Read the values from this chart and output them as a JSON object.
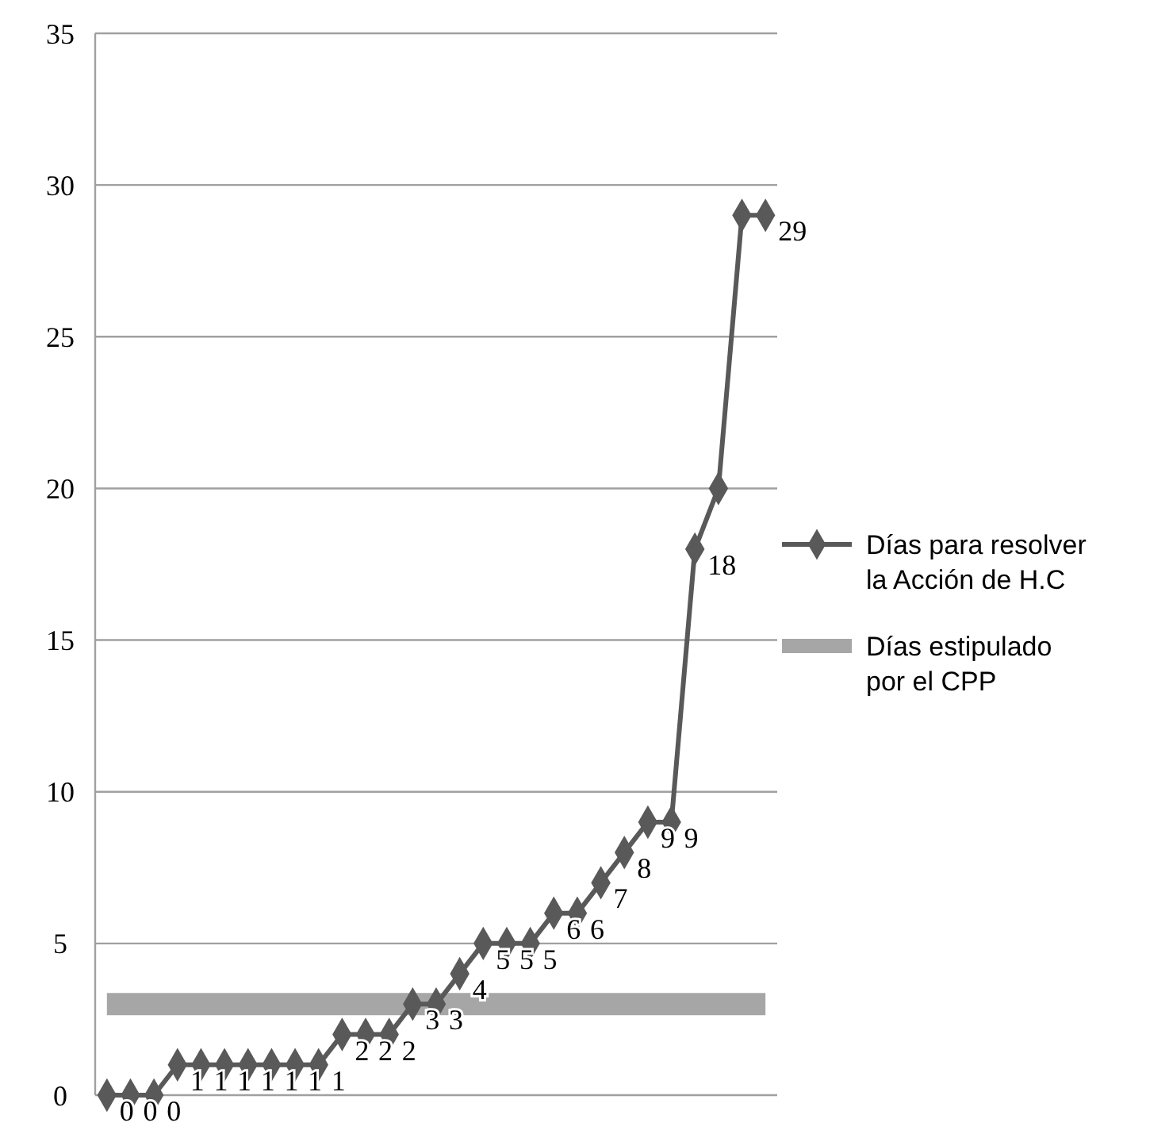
{
  "chart_data": {
    "type": "line",
    "categories": [
      null,
      null,
      null,
      null,
      null,
      null,
      null,
      null,
      null,
      null,
      null,
      null,
      null,
      null,
      null,
      null,
      null,
      null,
      null,
      null,
      null,
      null,
      null,
      null,
      null,
      null,
      null,
      null,
      null
    ],
    "series": [
      {
        "name": "Días para resolver la Acción de H.C",
        "color": "#595959",
        "marker": "diamond",
        "values": [
          0,
          0,
          0,
          1,
          1,
          1,
          1,
          1,
          1,
          1,
          2,
          2,
          2,
          3,
          3,
          4,
          5,
          5,
          5,
          6,
          6,
          7,
          8,
          9,
          9,
          18,
          20,
          29,
          29
        ],
        "value_labels": [
          "0",
          "0",
          "0",
          "1",
          "1",
          "1",
          "1",
          "1",
          "1",
          "1",
          "2",
          "2",
          "2",
          "3",
          "3",
          "4",
          "5",
          "5",
          "5",
          "6",
          "6",
          "7",
          "8",
          "9",
          "9",
          "18",
          null,
          null,
          "29"
        ]
      },
      {
        "name": "Días estipulado por el CPP",
        "color": "#a6a6a6",
        "marker": "none",
        "values": [
          3,
          3,
          3,
          3,
          3,
          3,
          3,
          3,
          3,
          3,
          3,
          3,
          3,
          3,
          3,
          3,
          3,
          3,
          3,
          3,
          3,
          3,
          3,
          3,
          3,
          3,
          3,
          3,
          3
        ]
      }
    ],
    "ylim": [
      0,
      35
    ],
    "yticks": [
      0,
      5,
      10,
      15,
      20,
      25,
      30,
      35
    ],
    "grid": "y",
    "legend": "right",
    "tick_labels": "y"
  }
}
